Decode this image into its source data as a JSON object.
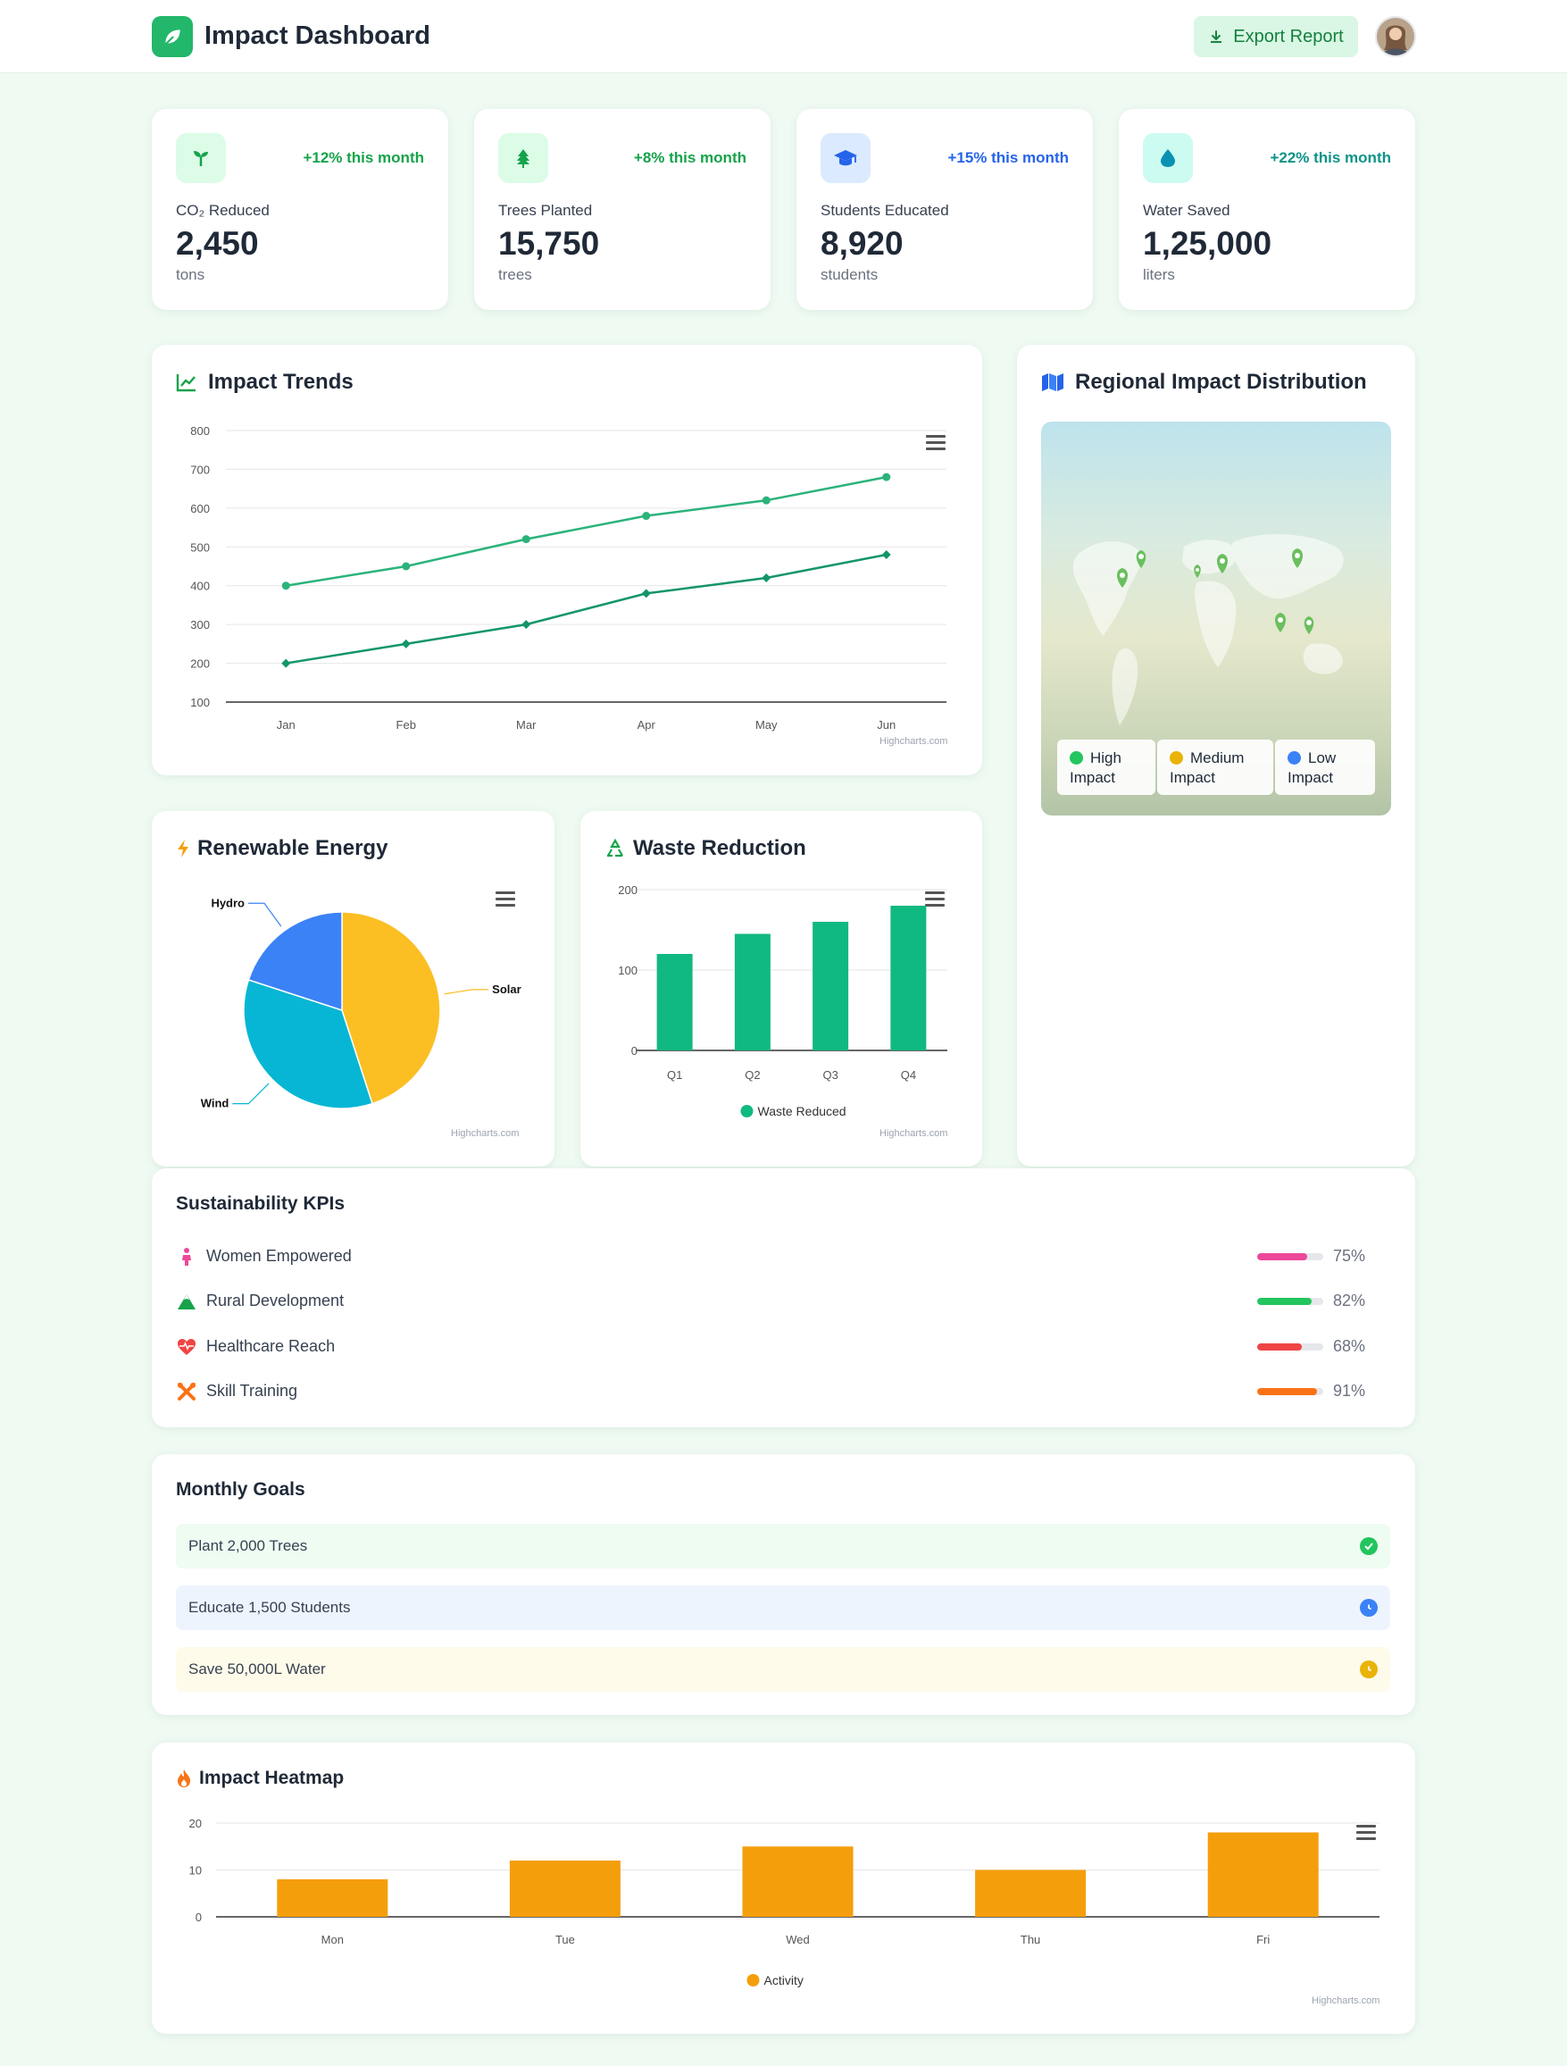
{
  "header": {
    "title": "Impact Dashboard",
    "export_label": "Export Report",
    "logo_icon": "leaf-icon",
    "avatar_icon": "user-avatar"
  },
  "stats": [
    {
      "icon": "seedling-icon",
      "label": "CO₂ Reduced",
      "value": "2,450",
      "unit": "tons",
      "change": "+12% this month",
      "color": "#16a34a",
      "bg": "#dcfce7"
    },
    {
      "icon": "tree-icon",
      "label": "Trees Planted",
      "value": "15,750",
      "unit": "trees",
      "change": "+8% this month",
      "color": "#16a34a",
      "bg": "#dcfce7"
    },
    {
      "icon": "graduation-cap-icon",
      "label": "Students Educated",
      "value": "8,920",
      "unit": "students",
      "change": "+15% this month",
      "color": "#2563eb",
      "bg": "#dbeafe"
    },
    {
      "icon": "water-drop-icon",
      "label": "Water Saved",
      "value": "1,25,000",
      "unit": "liters",
      "change": "+22% this month",
      "color": "#0d9488",
      "bg": "#ccfbf1"
    }
  ],
  "trends": {
    "title": "Impact Trends",
    "credit": "Highcharts.com"
  },
  "regional": {
    "title": "Regional Impact Distribution",
    "legend": [
      {
        "label": "High Impact",
        "color": "#22c55e"
      },
      {
        "label": "Medium Impact",
        "color": "#eab308"
      },
      {
        "label": "Low Impact",
        "color": "#3b82f6"
      }
    ]
  },
  "renewable": {
    "title": "Renewable Energy",
    "credit": "Highcharts.com"
  },
  "waste": {
    "title": "Waste Reduction",
    "credit": "Highcharts.com"
  },
  "kpis": {
    "title": "Sustainability KPIs",
    "items": [
      {
        "icon": "female-icon",
        "label": "Women Empowered",
        "value": "75%",
        "pct": 75,
        "color": "#ec4899"
      },
      {
        "icon": "mountain-icon",
        "label": "Rural Development",
        "value": "82%",
        "pct": 82,
        "color": "#22c55e"
      },
      {
        "icon": "heart-pulse-icon",
        "label": "Healthcare Reach",
        "value": "68%",
        "pct": 68,
        "color": "#ef4444"
      },
      {
        "icon": "tools-icon",
        "label": "Skill Training",
        "value": "91%",
        "pct": 91,
        "color": "#f97316"
      }
    ]
  },
  "goals": {
    "title": "Monthly Goals",
    "items": [
      {
        "label": "Plant 2,000 Trees",
        "status_icon": "check-circle-icon",
        "bg": "#eefcf2",
        "color": "#22c55e"
      },
      {
        "label": "Educate 1,500 Students",
        "status_icon": "clock-icon",
        "bg": "#eef4fe",
        "color": "#3b82f6"
      },
      {
        "label": "Save 50,000L Water",
        "status_icon": "clock-icon",
        "bg": "#fefbea",
        "color": "#eab308"
      }
    ]
  },
  "heatmap": {
    "title": "Impact Heatmap",
    "credit": "Highcharts.com"
  },
  "chart_data": [
    {
      "type": "line",
      "title": "Impact Trends",
      "categories": [
        "Jan",
        "Feb",
        "Mar",
        "Apr",
        "May",
        "Jun"
      ],
      "ylim": [
        100,
        800
      ],
      "yticks": [
        100,
        200,
        300,
        400,
        500,
        600,
        700,
        800
      ],
      "grid": true,
      "series": [
        {
          "values": [
            400,
            450,
            520,
            580,
            620,
            680
          ],
          "color": "#2bb37a",
          "marker": "circle"
        },
        {
          "values": [
            200,
            250,
            300,
            380,
            420,
            480
          ],
          "color": "#13956a",
          "marker": "diamond"
        }
      ]
    },
    {
      "type": "pie",
      "title": "Renewable Energy",
      "slices": [
        {
          "name": "Solar",
          "value": 45,
          "color": "#fbbf24"
        },
        {
          "name": "Wind",
          "value": 35,
          "color": "#06b6d4"
        },
        {
          "name": "Hydro",
          "value": 20,
          "color": "#3b82f6"
        }
      ]
    },
    {
      "type": "bar",
      "title": "Waste Reduction",
      "categories": [
        "Q1",
        "Q2",
        "Q3",
        "Q4"
      ],
      "ylim": [
        0,
        200
      ],
      "yticks": [
        0,
        100,
        200
      ],
      "series": [
        {
          "name": "Waste Reduced",
          "values": [
            120,
            145,
            160,
            180
          ],
          "color": "#10b981"
        }
      ],
      "legend": "bottom"
    },
    {
      "type": "bar",
      "title": "Impact Heatmap",
      "categories": [
        "Mon",
        "Tue",
        "Wed",
        "Thu",
        "Fri"
      ],
      "ylim": [
        0,
        20
      ],
      "yticks": [
        0,
        10,
        20
      ],
      "series": [
        {
          "name": "Activity",
          "values": [
            8,
            12,
            15,
            10,
            18
          ],
          "color": "#f59e0b"
        }
      ],
      "legend": "bottom"
    }
  ]
}
